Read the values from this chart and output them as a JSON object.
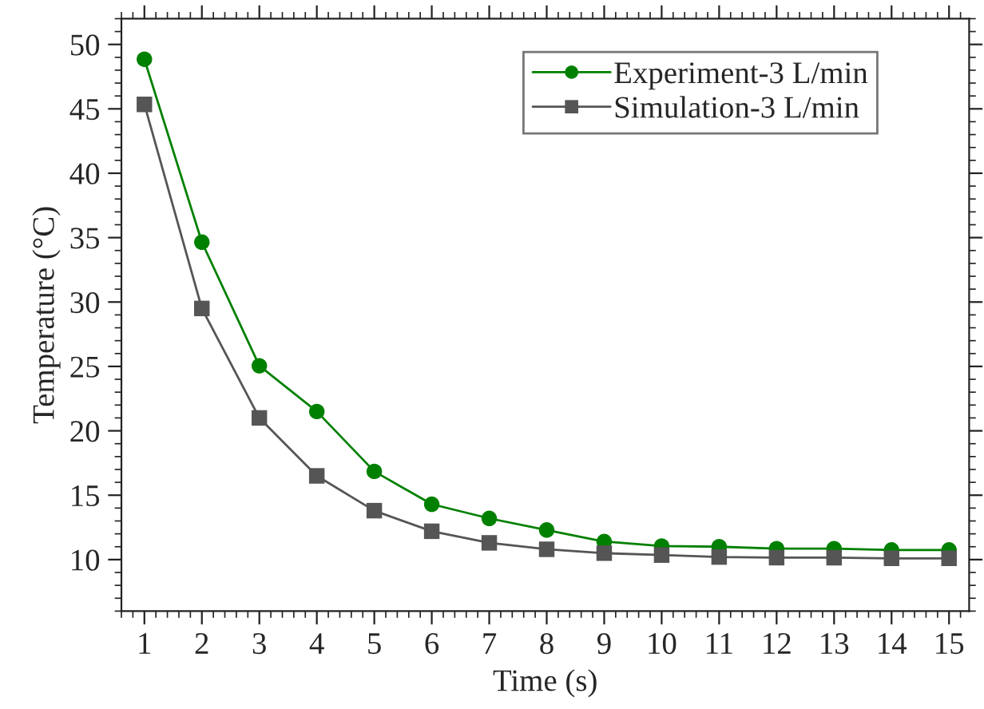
{
  "chart_data": {
    "type": "line",
    "xlabel": "Time (s)",
    "ylabel": "Temperature (°C)",
    "x": [
      1,
      2,
      3,
      4,
      5,
      6,
      7,
      8,
      9,
      10,
      11,
      12,
      13,
      14,
      15
    ],
    "series": [
      {
        "name": "Experiment-3 L/min",
        "color": "#008000",
        "marker": "circle",
        "values": [
          48.85,
          34.65,
          25.05,
          21.5,
          16.85,
          14.3,
          13.2,
          12.3,
          11.4,
          11.05,
          11.0,
          10.85,
          10.85,
          10.75,
          10.75
        ]
      },
      {
        "name": "Simulation-3 L/min",
        "color": "#555555",
        "marker": "square",
        "values": [
          45.35,
          29.5,
          21.0,
          16.5,
          13.8,
          12.2,
          11.3,
          10.8,
          10.5,
          10.35,
          10.2,
          10.15,
          10.15,
          10.1,
          10.1
        ]
      }
    ],
    "xlim": [
      0.6,
      15.35
    ],
    "xticks": [
      1,
      2,
      3,
      4,
      5,
      6,
      7,
      8,
      9,
      10,
      11,
      12,
      13,
      14,
      15
    ],
    "ylim": [
      6,
      52
    ],
    "yticks": [
      10,
      15,
      20,
      25,
      30,
      35,
      40,
      45,
      50
    ],
    "grid": false,
    "legend": "top right",
    "line_style": "solid"
  }
}
